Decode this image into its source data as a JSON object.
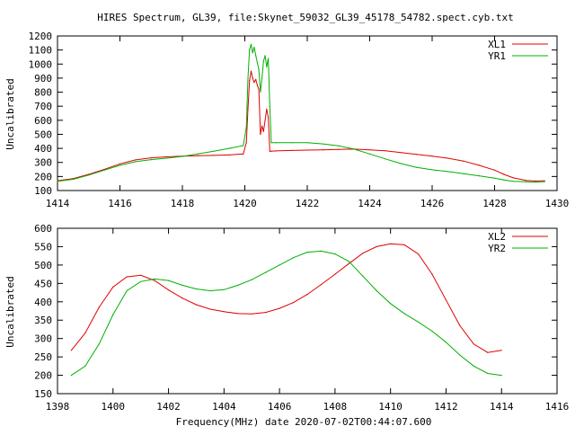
{
  "chart_data": [
    {
      "type": "line",
      "title": "HIRES Spectrum, GL39, file:Skynet_59032_GL39_45178_54782.spect.cyb.txt",
      "xlabel": "",
      "ylabel": "Uncalibrated",
      "xlim": [
        1414,
        1430
      ],
      "ylim": [
        100,
        1200
      ],
      "xticks": [
        "1414",
        "1416",
        "1418",
        "1420",
        "1422",
        "1424",
        "1426",
        "1428",
        "1430"
      ],
      "yticks": [
        "100",
        "200",
        "300",
        "400",
        "500",
        "600",
        "700",
        "800",
        "900",
        "1000",
        "1100",
        "1200"
      ],
      "legend_position": "top-right",
      "grid": false,
      "series": [
        {
          "name": "XL1",
          "color": "#e00000",
          "x": [
            1414.0,
            1414.5,
            1415.0,
            1415.5,
            1416.0,
            1416.5,
            1417.0,
            1417.5,
            1418.0,
            1418.5,
            1419.0,
            1419.5,
            1419.95,
            1420.05,
            1420.1,
            1420.15,
            1420.2,
            1420.25,
            1420.3,
            1420.35,
            1420.4,
            1420.45,
            1420.5,
            1420.55,
            1420.6,
            1420.65,
            1420.7,
            1420.75,
            1420.8,
            1420.85,
            1421.0,
            1421.5,
            1422.0,
            1422.5,
            1423.0,
            1423.5,
            1424.0,
            1424.5,
            1425.0,
            1425.5,
            1426.0,
            1426.5,
            1427.0,
            1427.5,
            1428.0,
            1428.3,
            1428.6,
            1429.0,
            1429.3,
            1429.6
          ],
          "y": [
            170,
            185,
            215,
            250,
            290,
            318,
            333,
            340,
            345,
            348,
            350,
            353,
            360,
            440,
            680,
            880,
            950,
            900,
            870,
            890,
            850,
            820,
            500,
            560,
            520,
            600,
            680,
            620,
            380,
            380,
            382,
            385,
            388,
            390,
            393,
            395,
            390,
            383,
            370,
            358,
            345,
            330,
            310,
            280,
            245,
            215,
            190,
            172,
            168,
            170
          ]
        },
        {
          "name": "YR1",
          "color": "#00b000",
          "x": [
            1414.0,
            1414.5,
            1415.0,
            1415.5,
            1416.0,
            1416.5,
            1417.0,
            1417.5,
            1418.0,
            1418.5,
            1419.0,
            1419.5,
            1419.95,
            1420.05,
            1420.1,
            1420.15,
            1420.2,
            1420.25,
            1420.3,
            1420.35,
            1420.4,
            1420.45,
            1420.5,
            1420.55,
            1420.6,
            1420.65,
            1420.7,
            1420.75,
            1420.8,
            1420.85,
            1421.0,
            1421.5,
            1422.0,
            1422.5,
            1423.0,
            1423.5,
            1424.0,
            1424.5,
            1425.0,
            1425.5,
            1426.0,
            1426.5,
            1427.0,
            1427.5,
            1428.0,
            1428.3,
            1428.6,
            1429.0,
            1429.3,
            1429.6
          ],
          "y": [
            165,
            180,
            210,
            245,
            280,
            305,
            320,
            330,
            343,
            360,
            380,
            400,
            420,
            550,
            900,
            1100,
            1140,
            1080,
            1120,
            1060,
            1010,
            960,
            800,
            900,
            1020,
            1060,
            980,
            1040,
            700,
            440,
            440,
            440,
            440,
            432,
            418,
            395,
            360,
            325,
            292,
            265,
            248,
            235,
            220,
            205,
            188,
            175,
            165,
            162,
            160,
            163
          ]
        }
      ]
    },
    {
      "type": "line",
      "title": "",
      "xlabel": "Frequency(MHz) date 2020-07-02T00:44:07.600",
      "ylabel": "Uncalibrated",
      "xlim": [
        1398,
        1416
      ],
      "ylim": [
        150,
        600
      ],
      "xticks": [
        "1398",
        "1400",
        "1402",
        "1404",
        "1406",
        "1408",
        "1410",
        "1412",
        "1414",
        "1416"
      ],
      "yticks": [
        "150",
        "200",
        "250",
        "300",
        "350",
        "400",
        "450",
        "500",
        "550",
        "600"
      ],
      "legend_position": "top-right",
      "grid": false,
      "series": [
        {
          "name": "XL2",
          "color": "#e00000",
          "x": [
            1398.5,
            1399.0,
            1399.5,
            1400.0,
            1400.5,
            1401.0,
            1401.5,
            1402.0,
            1402.5,
            1403.0,
            1403.5,
            1404.0,
            1404.5,
            1405.0,
            1405.5,
            1406.0,
            1406.5,
            1407.0,
            1407.5,
            1408.0,
            1408.5,
            1409.0,
            1409.5,
            1410.0,
            1410.5,
            1411.0,
            1411.5,
            1412.0,
            1412.5,
            1413.0,
            1413.5,
            1414.0
          ],
          "y": [
            268,
            315,
            385,
            440,
            468,
            472,
            458,
            432,
            410,
            392,
            380,
            373,
            368,
            367,
            371,
            382,
            398,
            420,
            447,
            475,
            504,
            532,
            550,
            558,
            555,
            530,
            475,
            405,
            335,
            285,
            262,
            268
          ]
        },
        {
          "name": "YR2",
          "color": "#00b000",
          "x": [
            1398.5,
            1399.0,
            1399.5,
            1400.0,
            1400.5,
            1401.0,
            1401.5,
            1402.0,
            1402.5,
            1403.0,
            1403.5,
            1404.0,
            1404.5,
            1405.0,
            1405.5,
            1406.0,
            1406.5,
            1407.0,
            1407.5,
            1408.0,
            1408.5,
            1409.0,
            1409.5,
            1410.0,
            1410.5,
            1411.0,
            1411.5,
            1412.0,
            1412.5,
            1413.0,
            1413.5,
            1414.0
          ],
          "y": [
            200,
            225,
            285,
            365,
            430,
            455,
            462,
            458,
            445,
            435,
            430,
            433,
            445,
            460,
            480,
            500,
            520,
            535,
            538,
            530,
            510,
            470,
            430,
            395,
            368,
            345,
            320,
            290,
            255,
            225,
            205,
            200
          ]
        }
      ]
    }
  ]
}
